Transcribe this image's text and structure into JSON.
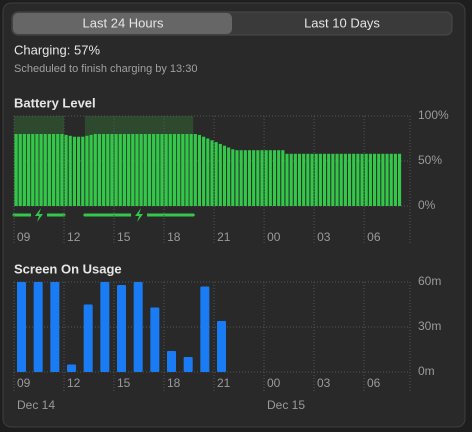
{
  "tabs": [
    "Last 24 Hours",
    "Last 10 Days"
  ],
  "status": {
    "title": "Charging: 57%",
    "subtitle": "Scheduled to finish charging by 13:30"
  },
  "chart_data": [
    {
      "type": "bar",
      "title": "Battery Level",
      "color": "#34c84a",
      "values": [
        80,
        80,
        80,
        80,
        80,
        80,
        80,
        80,
        80,
        80,
        80,
        80,
        79,
        78,
        77,
        77,
        77,
        78,
        79,
        80,
        80,
        80,
        80,
        80,
        80,
        80,
        80,
        80,
        80,
        80,
        80,
        80,
        80,
        80,
        80,
        80,
        80,
        80,
        80,
        80,
        80,
        80,
        80,
        80,
        79,
        77,
        75,
        73,
        71,
        69,
        67,
        65,
        63,
        62,
        62,
        62,
        62,
        62,
        62,
        62,
        62,
        62,
        62,
        62,
        62,
        58,
        58,
        58,
        58,
        58,
        58,
        58,
        58,
        58,
        58,
        58,
        58,
        58,
        58,
        58,
        58,
        58,
        58,
        58,
        58,
        58,
        58,
        58,
        58,
        58,
        58,
        58,
        58
      ],
      "charging_periods": [
        {
          "start": 0,
          "end": 12
        },
        {
          "start": 17,
          "end": 43
        }
      ],
      "xlim": [
        0,
        95
      ],
      "xticks": [
        {
          "value": 0,
          "label": "09"
        },
        {
          "value": 12,
          "label": "12"
        },
        {
          "value": 24,
          "label": "15"
        },
        {
          "value": 36,
          "label": "18"
        },
        {
          "value": 48,
          "label": "21"
        },
        {
          "value": 60,
          "label": "00"
        },
        {
          "value": 72,
          "label": "03"
        },
        {
          "value": 84,
          "label": "06"
        }
      ],
      "ylim": [
        0,
        100
      ],
      "yticks": [
        {
          "value": 100,
          "label": "100%"
        },
        {
          "value": 50,
          "label": "50%"
        },
        {
          "value": 0,
          "label": "0%"
        }
      ]
    },
    {
      "type": "bar",
      "title": "Screen On Usage",
      "color": "#1a7cf5",
      "values": [
        60,
        60,
        60,
        5,
        45,
        60,
        58,
        60,
        43,
        14,
        10,
        57,
        34
      ],
      "xlim": [
        0,
        23.76
      ],
      "xticks": [
        {
          "value": 0,
          "label": "09"
        },
        {
          "value": 3,
          "label": "12"
        },
        {
          "value": 6,
          "label": "15"
        },
        {
          "value": 9,
          "label": "18"
        },
        {
          "value": 12,
          "label": "21"
        },
        {
          "value": 15,
          "label": "00"
        },
        {
          "value": 18,
          "label": "03"
        },
        {
          "value": 21,
          "label": "06"
        }
      ],
      "date_labels": [
        {
          "value": 0,
          "label": "Dec 14"
        },
        {
          "value": 15,
          "label": "Dec 15"
        }
      ],
      "ylim": [
        0,
        60
      ],
      "yticks": [
        {
          "value": 60,
          "label": "60m"
        },
        {
          "value": 30,
          "label": "30m"
        },
        {
          "value": 0,
          "label": "0m"
        }
      ]
    }
  ]
}
